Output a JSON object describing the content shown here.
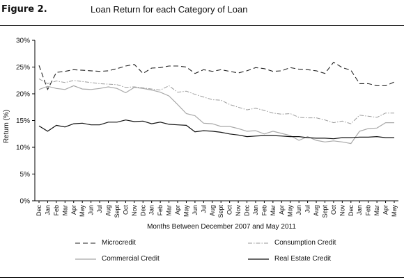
{
  "figure": {
    "label": "Figure 2.",
    "title": "Loan Return for each Category of Loan"
  },
  "chart_data": {
    "type": "line",
    "title": "Loan Return for each Category of Loan",
    "xlabel": "Months Between December 2007 and May 2011",
    "ylabel": "Return (%)",
    "ylim": [
      0,
      30
    ],
    "yticks": [
      "0%",
      "5%",
      "10%",
      "15%",
      "20%",
      "25%",
      "30%"
    ],
    "grid": false,
    "legend_position": "bottom",
    "x": [
      "Dec",
      "Jan",
      "Feb",
      "Mar",
      "Apr",
      "May",
      "Jun",
      "Jul",
      "Aug",
      "Sept",
      "Oct",
      "Nov",
      "Dec",
      "Jan",
      "Feb",
      "Mar",
      "Apr",
      "May",
      "Jun",
      "Jul",
      "Aug",
      "Sept",
      "Oct",
      "Nov",
      "Dec",
      "Jan",
      "Feb",
      "Mar",
      "Apr",
      "May",
      "Jun",
      "Jul",
      "Aug",
      "Sept",
      "Oct",
      "Nov",
      "Dec",
      "Jan",
      "Feb",
      "Mar",
      "Apr",
      "May"
    ],
    "series": [
      {
        "name": "Microcredit",
        "style": "dashed",
        "color": "#222222",
        "values": [
          25.3,
          20.8,
          24.0,
          24.2,
          24.5,
          24.4,
          24.3,
          24.2,
          24.3,
          24.7,
          25.2,
          25.5,
          23.8,
          24.8,
          24.9,
          25.2,
          25.2,
          25.0,
          23.8,
          24.5,
          24.2,
          24.5,
          24.2,
          23.9,
          24.3,
          24.9,
          24.7,
          24.2,
          24.3,
          24.9,
          24.6,
          24.5,
          24.3,
          23.8,
          25.9,
          24.9,
          24.4,
          21.9,
          21.9,
          21.5,
          21.5,
          22.2
        ]
      },
      {
        "name": "Consumption Credit",
        "style": "dashdot",
        "color": "#9a9a9a",
        "values": [
          22.8,
          21.9,
          22.4,
          22.1,
          22.5,
          22.3,
          22.1,
          21.9,
          21.8,
          21.7,
          21.2,
          21.3,
          21.1,
          20.9,
          20.7,
          21.5,
          20.3,
          20.5,
          19.9,
          19.4,
          18.9,
          18.8,
          18.0,
          17.5,
          17.0,
          17.3,
          16.9,
          16.4,
          16.2,
          16.3,
          15.6,
          15.5,
          15.5,
          15.1,
          14.6,
          14.9,
          14.4,
          16.0,
          15.8,
          15.6,
          16.4,
          16.4
        ]
      },
      {
        "name": "Commercial Credit",
        "style": "solid",
        "color": "#a8a8a8",
        "values": [
          20.8,
          21.4,
          21.0,
          20.8,
          21.5,
          20.9,
          20.8,
          21.0,
          21.3,
          21.0,
          20.2,
          21.2,
          21.0,
          20.7,
          20.3,
          19.6,
          18.0,
          16.3,
          15.9,
          14.5,
          14.4,
          13.9,
          13.9,
          13.5,
          13.0,
          13.1,
          12.5,
          13.0,
          12.6,
          12.2,
          11.3,
          12.0,
          11.3,
          11.0,
          11.2,
          11.0,
          10.7,
          13.0,
          13.5,
          13.6,
          14.6,
          14.6
        ]
      },
      {
        "name": "Real Estate Credit",
        "style": "solid",
        "color": "#111111",
        "values": [
          14.0,
          13.0,
          14.1,
          13.8,
          14.4,
          14.5,
          14.2,
          14.2,
          14.7,
          14.7,
          15.1,
          14.8,
          14.9,
          14.4,
          14.7,
          14.3,
          14.2,
          14.1,
          12.9,
          13.1,
          13.0,
          12.8,
          12.5,
          12.3,
          12.0,
          12.1,
          12.2,
          12.2,
          12.1,
          12.0,
          12.0,
          11.8,
          11.7,
          11.7,
          11.6,
          11.8,
          11.8,
          11.9,
          11.9,
          12.0,
          11.8,
          11.8
        ]
      }
    ]
  }
}
